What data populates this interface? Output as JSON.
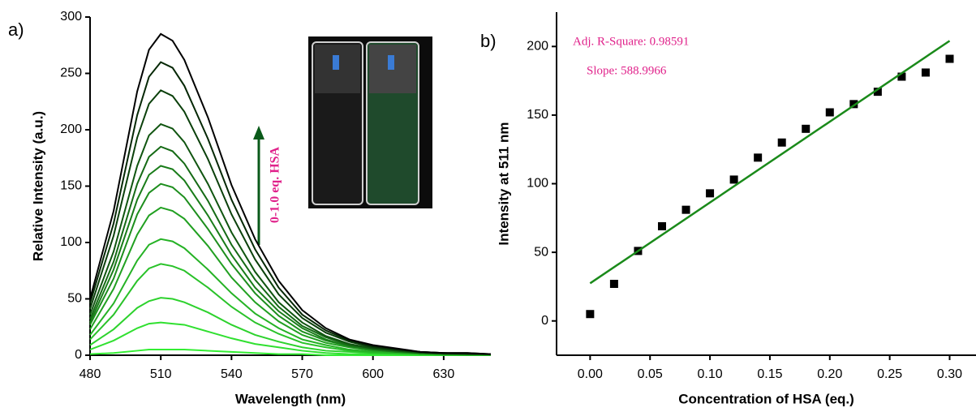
{
  "chart_data": [
    {
      "type": "line",
      "panel_label": "a)",
      "x_label": "Wavelength (nm)",
      "y_label": "Relative Intensity (a.u.)",
      "annotation": "0-1.0 eq. HSA",
      "x": [
        480,
        490,
        500,
        505,
        510,
        515,
        520,
        530,
        540,
        550,
        560,
        570,
        580,
        590,
        600,
        610,
        620,
        630,
        640,
        650
      ],
      "xlim": [
        480,
        650
      ],
      "xticks": [
        480,
        510,
        540,
        570,
        600,
        630
      ],
      "ylim": [
        0,
        300
      ],
      "yticks": [
        0,
        50,
        100,
        150,
        200,
        250,
        300
      ],
      "series": [
        {
          "color": "#33ee33",
          "values": [
            1,
            2,
            4,
            5,
            5,
            5,
            5,
            4,
            3,
            2,
            1,
            1,
            0,
            0,
            0,
            0,
            0,
            0,
            0,
            0
          ]
        },
        {
          "color": "#30e030",
          "values": [
            5,
            13,
            24,
            28,
            29,
            28,
            27,
            21,
            15,
            10,
            7,
            4,
            2,
            1,
            1,
            1,
            0,
            0,
            0,
            0
          ]
        },
        {
          "color": "#2dd22d",
          "values": [
            9,
            23,
            42,
            48,
            51,
            50,
            47,
            38,
            27,
            18,
            12,
            7,
            4,
            3,
            2,
            1,
            1,
            0,
            0,
            0
          ]
        },
        {
          "color": "#29c229",
          "values": [
            14,
            36,
            66,
            77,
            81,
            79,
            75,
            60,
            43,
            29,
            19,
            11,
            7,
            4,
            2,
            2,
            1,
            1,
            0,
            0
          ]
        },
        {
          "color": "#25b225",
          "values": [
            18,
            46,
            84,
            98,
            103,
            101,
            95,
            76,
            55,
            37,
            24,
            14,
            9,
            5,
            3,
            2,
            1,
            1,
            1,
            0
          ]
        },
        {
          "color": "#21a021",
          "values": [
            23,
            59,
            107,
            124,
            131,
            128,
            121,
            97,
            69,
            47,
            30,
            18,
            11,
            7,
            4,
            3,
            2,
            1,
            1,
            1
          ]
        },
        {
          "color": "#1d8e1d",
          "values": [
            27,
            68,
            125,
            144,
            152,
            149,
            140,
            112,
            81,
            55,
            35,
            21,
            13,
            8,
            5,
            3,
            2,
            1,
            1,
            1
          ]
        },
        {
          "color": "#197c19",
          "values": [
            29,
            76,
            138,
            160,
            168,
            165,
            155,
            124,
            89,
            60,
            39,
            24,
            14,
            8,
            5,
            3,
            2,
            1,
            1,
            1
          ]
        },
        {
          "color": "#156a15",
          "values": [
            32,
            83,
            152,
            176,
            185,
            181,
            170,
            137,
            98,
            67,
            43,
            26,
            16,
            9,
            6,
            4,
            2,
            1,
            1,
            1
          ]
        },
        {
          "color": "#105510",
          "values": [
            36,
            92,
            168,
            195,
            205,
            201,
            189,
            152,
            109,
            74,
            47,
            29,
            17,
            10,
            6,
            4,
            2,
            2,
            1,
            1
          ]
        },
        {
          "color": "#0b400b",
          "values": [
            41,
            106,
            193,
            223,
            235,
            230,
            216,
            174,
            125,
            85,
            54,
            33,
            20,
            12,
            7,
            5,
            3,
            2,
            1,
            1
          ]
        },
        {
          "color": "#062806",
          "values": [
            46,
            117,
            213,
            247,
            260,
            255,
            239,
            192,
            138,
            94,
            60,
            36,
            22,
            13,
            8,
            5,
            3,
            2,
            2,
            1
          ]
        },
        {
          "color": "#000000",
          "values": [
            50,
            128,
            234,
            271,
            285,
            279,
            262,
            211,
            151,
            103,
            66,
            40,
            24,
            14,
            9,
            6,
            3,
            2,
            2,
            1
          ]
        }
      ]
    },
    {
      "type": "scatter",
      "panel_label": "b)",
      "x_label": "Concentration of HSA (eq.)",
      "y_label": "Intensity at 511 nm",
      "annotations": [
        "Adj. R-Square: 0.98591",
        "Slope: 588.9966"
      ],
      "xlim": [
        -0.028,
        0.322
      ],
      "xticks": [
        {
          "value": 0,
          "label": "0.00"
        },
        {
          "value": 0.05,
          "label": "0.05"
        },
        {
          "value": 0.1,
          "label": "0.10"
        },
        {
          "value": 0.15,
          "label": "0.15"
        },
        {
          "value": 0.2,
          "label": "0.20"
        },
        {
          "value": 0.25,
          "label": "0.25"
        },
        {
          "value": 0.3,
          "label": "0.30"
        }
      ],
      "ylim": [
        -25,
        225
      ],
      "yticks": [
        0,
        50,
        100,
        150,
        200
      ],
      "series": [
        {
          "mode": "markers",
          "color": "#000000",
          "x": [
            0,
            0.02,
            0.04,
            0.06,
            0.08,
            0.1,
            0.12,
            0.14,
            0.16,
            0.18,
            0.2,
            0.22,
            0.24,
            0.26,
            0.28,
            0.3
          ],
          "values": [
            5,
            27,
            51,
            69,
            81,
            93,
            103,
            119,
            130,
            140,
            152,
            158,
            167,
            178,
            181,
            191
          ]
        },
        {
          "mode": "line",
          "color": "#1a8a1a",
          "x": [
            0,
            0.3
          ],
          "values": [
            27.4,
            204.1
          ]
        }
      ]
    }
  ]
}
